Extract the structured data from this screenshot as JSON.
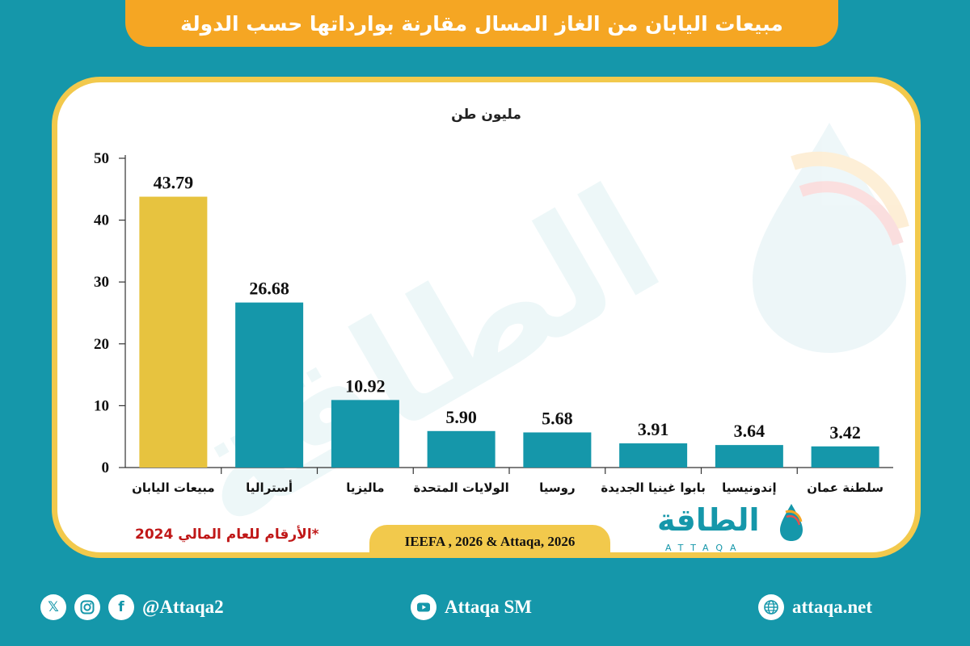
{
  "title": "مبيعات اليابان من الغاز المسال مقارنة بوارداتها حسب الدولة",
  "unit_label": "مليون طن",
  "footnote": "*الأرقام للعام المالي 2024",
  "source": "IEEFA , 2026 & Attaqa, 2026",
  "logo": {
    "arabic": "الطاقة",
    "latin": "ATTAQA"
  },
  "footer": {
    "social_handle": "@Attaqa2",
    "youtube": "Attaqa SM",
    "website": "attaqa.net",
    "icons": [
      "x-icon",
      "instagram-icon",
      "facebook-icon",
      "youtube-icon",
      "globe-icon"
    ]
  },
  "colors": {
    "highlight_bar": "#e7c33f",
    "bar": "#1597aa",
    "background": "#1597aa",
    "accent": "#f5a623"
  },
  "chart_data": {
    "type": "bar",
    "categories": [
      "مبيعات اليابان",
      "أستراليا",
      "ماليزيا",
      "الولايات المتحدة",
      "روسيا",
      "بابوا غينيا الجديدة",
      "إندونيسيا",
      "سلطنة عمان"
    ],
    "values": [
      43.79,
      26.68,
      10.92,
      5.9,
      5.68,
      3.91,
      3.64,
      3.42
    ],
    "value_labels": [
      "43.79",
      "26.68",
      "10.92",
      "5.90",
      "5.68",
      "3.91",
      "3.64",
      "3.42"
    ],
    "highlight_index": 0,
    "ylim": [
      0,
      50
    ],
    "yticks": [
      0,
      10,
      20,
      30,
      40,
      50
    ],
    "title": "",
    "xlabel": "",
    "ylabel": "مليون طن"
  }
}
